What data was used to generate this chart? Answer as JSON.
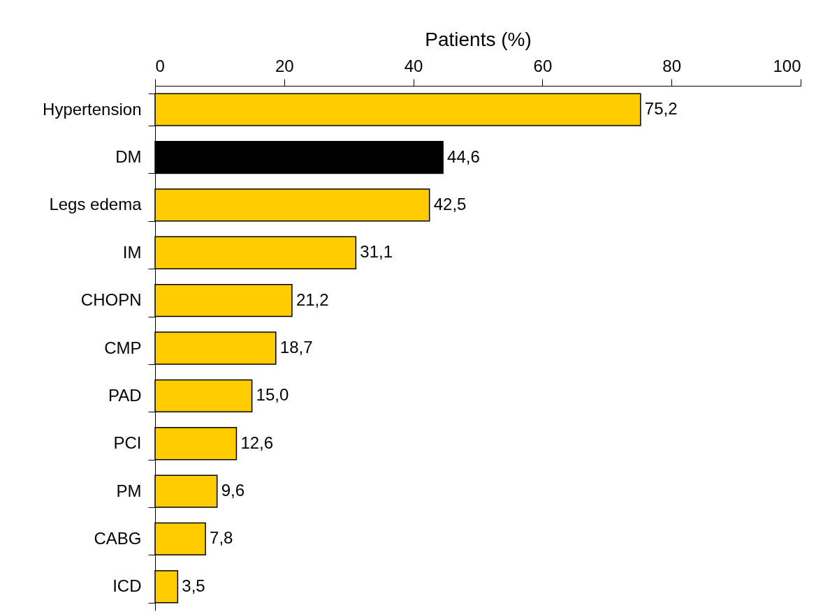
{
  "chart_data": {
    "type": "bar",
    "orientation": "horizontal",
    "xlabel": "Patients (%)",
    "categories": [
      "Hypertension",
      "DM",
      "Legs edema",
      "IM",
      "CHOPN",
      "CMP",
      "PAD",
      "PCI",
      "PM",
      "CABG",
      "ICD"
    ],
    "values": [
      75.2,
      44.6,
      42.5,
      31.1,
      21.2,
      18.7,
      15.0,
      12.6,
      9.6,
      7.8,
      3.5
    ],
    "value_labels": [
      "75,2",
      "44,6",
      "42,5",
      "31,1",
      "21,2",
      "18,7",
      "15,0",
      "12,6",
      "9,6",
      "7,8",
      "3,5"
    ],
    "colors": [
      "#ffcc00",
      "#000000",
      "#ffcc00",
      "#ffcc00",
      "#ffcc00",
      "#ffcc00",
      "#ffcc00",
      "#ffcc00",
      "#ffcc00",
      "#ffcc00",
      "#ffcc00"
    ],
    "xlim": [
      0,
      100
    ],
    "xticks": [
      0,
      20,
      40,
      60,
      80,
      100
    ],
    "grid": false,
    "legend": false
  }
}
